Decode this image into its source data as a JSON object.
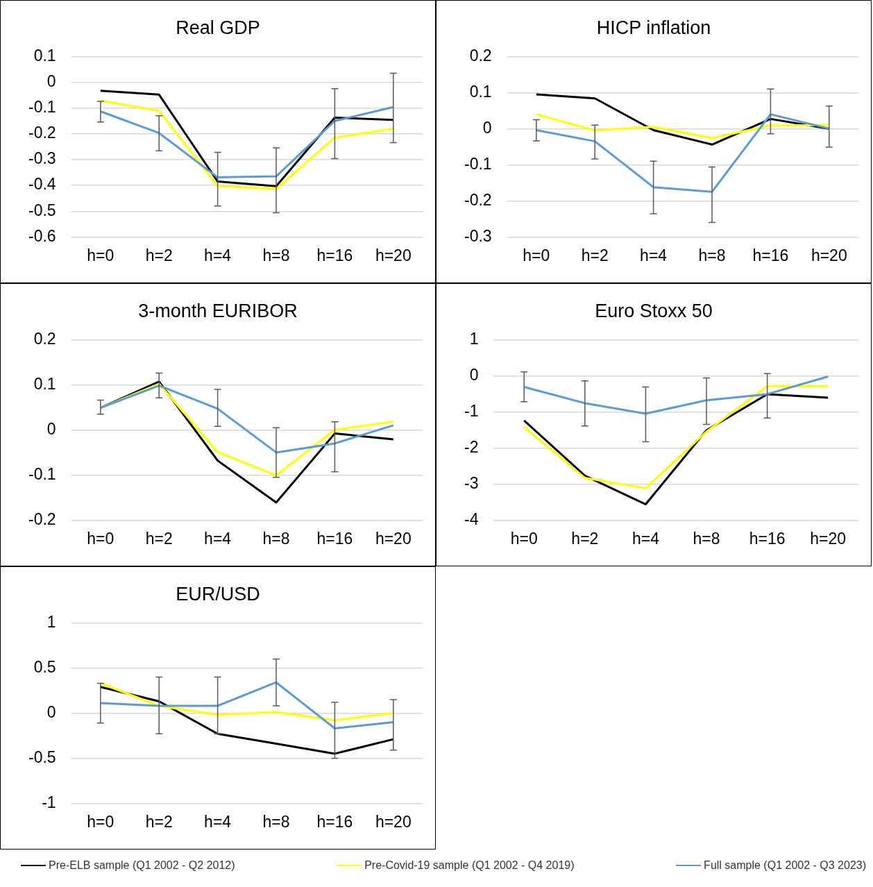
{
  "chart_data": [
    {
      "type": "line",
      "title": "Real GDP",
      "categories": [
        "h=0",
        "h=2",
        "h=4",
        "h=8",
        "h=16",
        "h=20"
      ],
      "ylim": [
        -0.6,
        0.1
      ],
      "yticks": [
        -0.6,
        -0.5,
        -0.4,
        -0.3,
        -0.2,
        -0.1,
        0,
        0.1
      ],
      "grid": "y",
      "legend": "bottom",
      "marker": "none",
      "series": [
        {
          "name": "Pre-ELB sample (Q1 2002 - Q2 2012)",
          "color": "#000000",
          "values": [
            -0.033,
            -0.048,
            -0.385,
            -0.403,
            -0.137,
            -0.146
          ]
        },
        {
          "name": "Pre-Covid-19 sample (Q1 2002 - Q4 2019)",
          "color": "#ffff00",
          "values": [
            -0.071,
            -0.111,
            -0.403,
            -0.414,
            -0.215,
            -0.18
          ]
        },
        {
          "name": "Full sample (Q1 2002 - Q3 2023)",
          "color": "#5b9bd5",
          "values": [
            -0.113,
            -0.197,
            -0.369,
            -0.365,
            -0.15,
            -0.096
          ],
          "errors": [
            [
              -0.154,
              -0.074
            ],
            [
              -0.266,
              -0.13
            ],
            [
              -0.48,
              -0.272
            ],
            [
              -0.506,
              -0.254
            ],
            [
              -0.296,
              -0.025
            ],
            [
              -0.234,
              0.035
            ]
          ]
        }
      ]
    },
    {
      "type": "line",
      "title": "HICP inflation",
      "categories": [
        "h=0",
        "h=2",
        "h=4",
        "h=8",
        "h=16",
        "h=20"
      ],
      "ylim": [
        -0.3,
        0.2
      ],
      "yticks": [
        -0.3,
        -0.2,
        -0.1,
        0,
        0.1,
        0.2
      ],
      "grid": "y",
      "marker": "none",
      "series": [
        {
          "color": "#000000",
          "values": [
            0.095,
            0.084,
            -0.004,
            -0.044,
            0.027,
            0
          ]
        },
        {
          "color": "#ffff00",
          "values": [
            0.04,
            -0.005,
            0.005,
            -0.026,
            0.009,
            0.01
          ]
        },
        {
          "color": "#5b9bd5",
          "values": [
            -0.004,
            -0.035,
            -0.162,
            -0.175,
            0.04,
            0
          ],
          "errors": [
            [
              -0.034,
              0.025
            ],
            [
              -0.084,
              0.01
            ],
            [
              -0.236,
              -0.09
            ],
            [
              -0.26,
              -0.106
            ],
            [
              -0.014,
              0.11
            ],
            [
              -0.051,
              0.063
            ]
          ]
        }
      ]
    },
    {
      "type": "line",
      "title": "3-month EURIBOR",
      "categories": [
        "h=0",
        "h=2",
        "h=4",
        "h=8",
        "h=16",
        "h=20"
      ],
      "ylim": [
        -0.2,
        0.2
      ],
      "yticks": [
        -0.2,
        -0.1,
        0,
        0.1,
        0.2
      ],
      "grid": "y",
      "marker": "none",
      "series": [
        {
          "color": "#000000",
          "values": [
            0.049,
            0.107,
            -0.068,
            -0.161,
            -0.008,
            -0.021
          ]
        },
        {
          "color": "#ffff00",
          "values": [
            0.049,
            0.102,
            -0.049,
            -0.101,
            0,
            0.018
          ]
        },
        {
          "color": "#5b9bd5",
          "values": [
            0.049,
            0.098,
            0.047,
            -0.05,
            -0.03,
            0.01
          ],
          "errors": [
            [
              0.035,
              0.066
            ],
            [
              0.071,
              0.126
            ],
            [
              0.008,
              0.09
            ],
            [
              -0.105,
              0.005
            ],
            [
              -0.093,
              0.018
            ],
            null
          ]
        }
      ]
    },
    {
      "type": "line",
      "title": "Euro Stoxx 50",
      "categories": [
        "h=0",
        "h=2",
        "h=4",
        "h=8",
        "h=16",
        "h=20"
      ],
      "ylim": [
        -4,
        1
      ],
      "yticks": [
        -4,
        -3,
        -2,
        -1,
        0,
        1
      ],
      "grid": "y",
      "marker": "none",
      "series": [
        {
          "color": "#000000",
          "values": [
            -1.24,
            -2.77,
            -3.56,
            -1.51,
            -0.51,
            -0.61
          ]
        },
        {
          "color": "#ffff00",
          "values": [
            -1.42,
            -2.83,
            -3.12,
            -1.55,
            -0.29,
            -0.29
          ]
        },
        {
          "color": "#5b9bd5",
          "values": [
            -0.31,
            -0.76,
            -1.05,
            -0.68,
            -0.51,
            -0.02
          ],
          "errors": [
            [
              -0.72,
              0.11
            ],
            [
              -1.39,
              -0.14
            ],
            [
              -1.83,
              -0.31
            ],
            [
              -1.35,
              -0.06
            ],
            [
              -1.17,
              0.06
            ],
            null
          ]
        }
      ]
    },
    {
      "type": "line",
      "title": "EUR/USD",
      "categories": [
        "h=0",
        "h=2",
        "h=4",
        "h=8",
        "h=16",
        "h=20"
      ],
      "ylim": [
        -1,
        1
      ],
      "yticks": [
        -1,
        -0.5,
        0,
        0.5,
        1
      ],
      "grid": "y",
      "marker": "none",
      "series": [
        {
          "color": "#000000",
          "values": [
            0.29,
            0.13,
            -0.23,
            -0.34,
            -0.45,
            -0.29
          ]
        },
        {
          "color": "#ffff00",
          "values": [
            0.33,
            0.08,
            -0.02,
            0.01,
            -0.08,
            0
          ]
        },
        {
          "color": "#5b9bd5",
          "values": [
            0.11,
            0.08,
            0.08,
            0.34,
            -0.17,
            -0.1
          ],
          "errors": [
            [
              -0.11,
              0.33
            ],
            [
              -0.23,
              0.4
            ],
            [
              -0.23,
              0.4
            ],
            [
              0.08,
              0.6
            ],
            [
              -0.5,
              0.12
            ],
            [
              -0.41,
              0.15
            ]
          ]
        }
      ]
    }
  ]
}
